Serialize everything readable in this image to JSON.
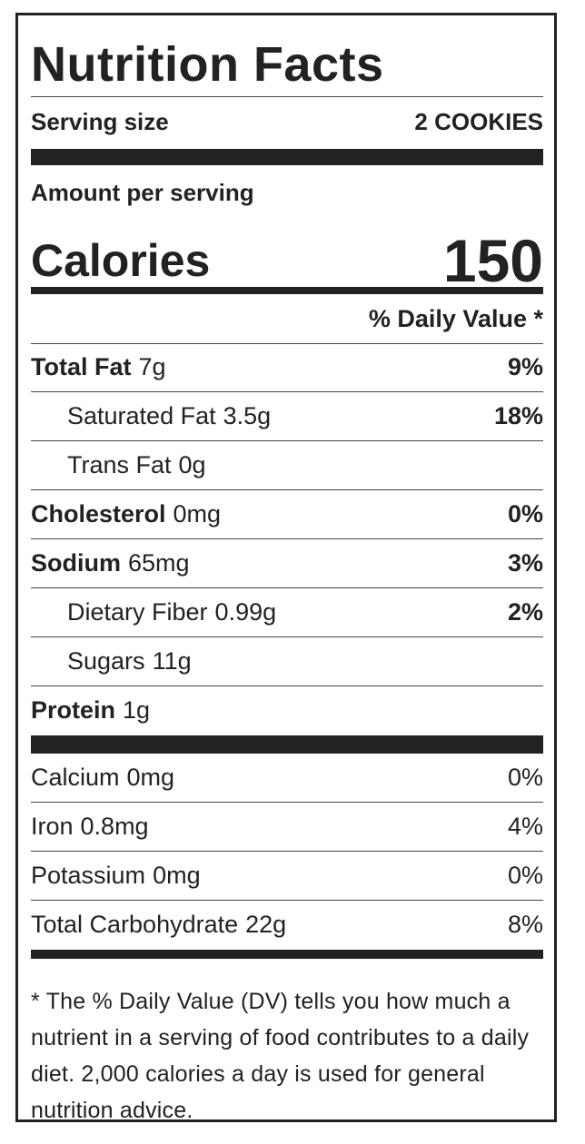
{
  "title": "Nutrition Facts",
  "serving": {
    "label": "Serving size",
    "value": "2 COOKIES"
  },
  "amount_per_serving": "Amount per serving",
  "calories": {
    "label": "Calories",
    "value": 150
  },
  "daily_value_header": "% Daily Value *",
  "nutrients": [
    {
      "name": "Total Fat",
      "amount": "7g",
      "dv": "9%"
    },
    {
      "name": "Saturated Fat",
      "amount": "3.5g",
      "dv": "18%"
    },
    {
      "name": "Trans Fat",
      "amount": "0g"
    },
    {
      "name": "Cholesterol",
      "amount": "0mg",
      "dv": "0%"
    },
    {
      "name": "Sodium",
      "amount": "65mg",
      "dv": "3%"
    },
    {
      "name": "Dietary Fiber",
      "amount": "0.99g",
      "dv": "2%"
    },
    {
      "name": "Sugars",
      "amount": "11g"
    },
    {
      "name": "Protein",
      "amount": "1g"
    }
  ],
  "minerals": [
    {
      "name": "Calcium",
      "amount": "0mg",
      "dv": "0%"
    },
    {
      "name": "Iron",
      "amount": "0.8mg",
      "dv": "4%"
    },
    {
      "name": "Potassium",
      "amount": "0mg",
      "dv": "0%"
    },
    {
      "name": "Total Carbohydrate",
      "amount": "22g",
      "dv": "8%"
    }
  ],
  "footnote": "* The % Daily Value (DV) tells you how much a nutrient in a serving of food contributes to a daily diet. 2,000 calories a day is used for general nutrition advice."
}
